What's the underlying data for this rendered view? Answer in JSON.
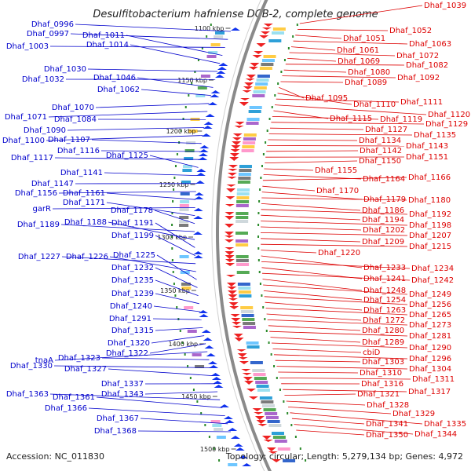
{
  "title": "Desulfitobacterium hafniense DCB-2, complete genome",
  "footer": {
    "accession": "Accession: NC_011830",
    "topology": "Topology: circular; Length: 5,279,134 bp; Genes: 4,972"
  },
  "colors": {
    "left_label": "#0000cc",
    "right_label": "#dd0000",
    "backbone": "#8a8a8a",
    "tick": "#2a8a2a"
  },
  "kbp_ticks": [
    "1100 kbp",
    "1150 kbp",
    "1200 kbp",
    "1250 kbp",
    "1300 kbp",
    "1350 kbp",
    "1400 kbp",
    "1450 kbp",
    "1500 kbp"
  ],
  "left_genes": [
    "Dhaf_0996",
    "Dhaf_0997",
    "Dhaf_1003",
    "Dhaf_1011",
    "Dhaf_1014",
    "Dhaf_1030",
    "Dhaf_1032",
    "Dhaf_1046",
    "Dhaf_1062",
    "Dhaf_1070",
    "Dhaf_1071",
    "Dhaf_1084",
    "Dhaf_1090",
    "Dhaf_1100",
    "Dhaf_1107",
    "Dhaf_1116",
    "Dhaf_1117",
    "Dhaf_1125",
    "Dhaf_1141",
    "Dhaf_1147",
    "Dhaf_1156",
    "Dhaf_1161",
    "garR",
    "Dhaf_1171",
    "Dhaf_1178",
    "Dhaf_1189",
    "Dhaf_1188",
    "Dhaf_1191",
    "Dhaf_1199",
    "Dhaf_1227",
    "Dhaf_1226",
    "Dhaf_1225",
    "Dhaf_1232",
    "Dhaf_1235",
    "Dhaf_1239",
    "Dhaf_1240",
    "Dhaf_1291",
    "Dhaf_1315",
    "Dhaf_1320",
    "Dhaf_1322",
    "tnaA",
    "Dhaf_1323",
    "Dhaf_1330",
    "Dhaf_1327",
    "Dhaf_1337",
    "Dhaf_1343",
    "Dhaf_1363",
    "Dhaf_1361",
    "Dhaf_1366",
    "Dhaf_1367",
    "Dhaf_1368"
  ],
  "right_genes": [
    "Dhaf_1039",
    "Dhaf_1052",
    "Dhaf_1051",
    "Dhaf_1063",
    "Dhaf_1061",
    "Dhaf_1072",
    "Dhaf_1069",
    "Dhaf_1082",
    "Dhaf_1080",
    "Dhaf_1092",
    "Dhaf_1089",
    "Dhaf_1095",
    "Dhaf_1110",
    "Dhaf_1111",
    "Dhaf_1120",
    "Dhaf_1115",
    "Dhaf_1119",
    "Dhaf_1129",
    "Dhaf_1127",
    "Dhaf_1135",
    "Dhaf_1134",
    "Dhaf_1143",
    "Dhaf_1142",
    "Dhaf_1151",
    "Dhaf_1150",
    "Dhaf_1155",
    "Dhaf_1164",
    "Dhaf_1166",
    "Dhaf_1170",
    "Dhaf_1179",
    "Dhaf_1180",
    "Dhaf_1186",
    "Dhaf_1192",
    "Dhaf_1194",
    "Dhaf_1198",
    "Dhaf_1202",
    "Dhaf_1207",
    "Dhaf_1209",
    "Dhaf_1215",
    "Dhaf_1220",
    "Dhaf_1233",
    "Dhaf_1234",
    "Dhaf_1241",
    "Dhaf_1242",
    "Dhaf_1248",
    "Dhaf_1249",
    "Dhaf_1254",
    "Dhaf_1256",
    "Dhaf_1263",
    "Dhaf_1265",
    "Dhaf_1272",
    "Dhaf_1273",
    "Dhaf_1280",
    "Dhaf_1281",
    "Dhaf_1289",
    "Dhaf_1290",
    "cbiD",
    "Dhaf_1296",
    "Dhaf_1303",
    "Dhaf_1304",
    "Dhaf_1310",
    "Dhaf_1311",
    "Dhaf_1316",
    "Dhaf_1317",
    "Dhaf_1321",
    "Dhaf_1328",
    "Dhaf_1329",
    "Dhaf_1335",
    "Dhaf_1341",
    "Dhaf_1344",
    "Dhaf_1350"
  ]
}
